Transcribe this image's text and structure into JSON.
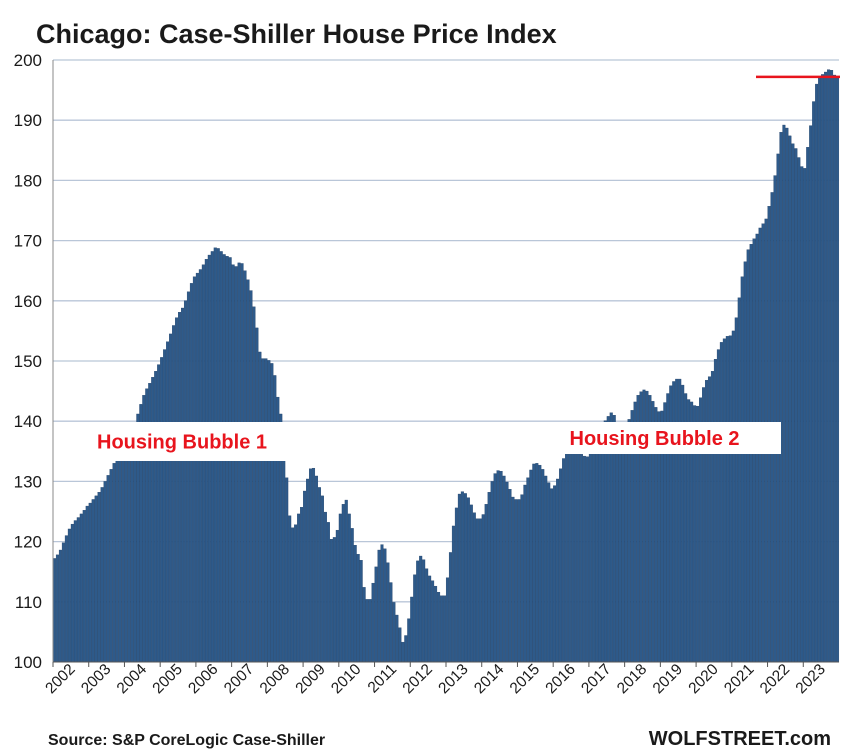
{
  "chart_data": {
    "type": "bar",
    "title": "Chicago: Case-Shiller House Price Index",
    "xlabel": "",
    "ylabel": "",
    "ylim": [
      100,
      200
    ],
    "yticks": [
      100,
      110,
      120,
      130,
      140,
      150,
      160,
      170,
      180,
      190,
      200
    ],
    "year_labels": [
      "2002",
      "2003",
      "2004",
      "2005",
      "2006",
      "2007",
      "2008",
      "2009",
      "2010",
      "2011",
      "2012",
      "2013",
      "2014",
      "2015",
      "2016",
      "2017",
      "2018",
      "2019",
      "2020",
      "2021",
      "2022",
      "2023"
    ],
    "start": "2002-01",
    "frequency": "monthly",
    "grid": true,
    "legend": "none",
    "values": [
      117.2,
      117.8,
      118.6,
      119.8,
      121.0,
      122.1,
      122.9,
      123.5,
      124.0,
      124.6,
      125.2,
      125.9,
      126.4,
      127.0,
      127.6,
      128.2,
      129.0,
      130.0,
      131.0,
      132.0,
      133.0,
      133.8,
      134.6,
      135.4,
      136.3,
      137.4,
      138.6,
      139.8,
      141.2,
      142.8,
      144.3,
      145.4,
      146.3,
      147.3,
      148.3,
      149.4,
      150.6,
      151.9,
      153.2,
      154.5,
      155.9,
      157.2,
      158.1,
      158.8,
      160.0,
      161.5,
      162.9,
      164.0,
      164.6,
      165.2,
      166.0,
      166.9,
      167.6,
      168.2,
      168.8,
      168.7,
      168.2,
      167.7,
      167.4,
      167.2,
      166.0,
      165.7,
      166.3,
      166.2,
      165.0,
      163.5,
      161.7,
      159.0,
      155.5,
      151.5,
      150.4,
      150.4,
      150.1,
      149.6,
      147.6,
      144.0,
      141.2,
      137.2,
      130.6,
      124.3,
      122.3,
      122.8,
      124.6,
      125.7,
      128.4,
      130.4,
      132.1,
      132.2,
      130.9,
      129.0,
      127.6,
      124.9,
      123.2,
      120.4,
      120.7,
      121.9,
      124.6,
      126.2,
      126.9,
      124.6,
      122.2,
      119.4,
      117.9,
      116.9,
      112.4,
      110.4,
      110.4,
      113.1,
      115.8,
      118.6,
      119.5,
      118.8,
      116.5,
      113.2,
      109.9,
      107.8,
      105.7,
      103.3,
      104.4,
      107.2,
      110.8,
      114.5,
      116.8,
      117.6,
      117.0,
      115.5,
      114.3,
      113.5,
      112.6,
      111.6,
      111.0,
      111.0,
      114.0,
      118.2,
      122.6,
      125.6,
      127.9,
      128.3,
      128.0,
      127.3,
      126.1,
      124.8,
      123.8,
      123.8,
      124.5,
      126.2,
      128.2,
      130.0,
      131.3,
      131.8,
      131.7,
      130.9,
      129.9,
      128.7,
      127.4,
      127.0,
      127.0,
      127.8,
      129.4,
      130.6,
      131.9,
      132.9,
      133.0,
      132.7,
      132.0,
      130.9,
      129.8,
      128.8,
      129.3,
      130.4,
      132.1,
      133.8,
      135.3,
      136.0,
      135.8,
      135.4,
      134.9,
      134.5,
      134.2,
      134.1,
      135.1,
      135.7,
      136.6,
      137.6,
      139.0,
      140.1,
      140.8,
      141.4,
      141.0,
      139.4,
      138.1,
      138.0,
      139.1,
      140.3,
      141.8,
      143.2,
      144.3,
      144.9,
      145.2,
      145.0,
      144.3,
      143.3,
      142.3,
      141.6,
      141.7,
      143.1,
      144.6,
      145.9,
      146.6,
      147.0,
      147.0,
      146.0,
      144.6,
      143.6,
      143.2,
      142.6,
      142.5,
      143.9,
      145.6,
      146.8,
      147.4,
      148.3,
      150.3,
      151.9,
      153.1,
      153.7,
      154.1,
      154.2,
      155.0,
      157.2,
      160.5,
      164.0,
      166.5,
      168.5,
      169.4,
      170.3,
      171.1,
      172.1,
      172.8,
      173.6,
      175.7,
      178.0,
      180.8,
      184.4,
      188.0,
      189.2,
      188.7,
      187.4,
      186.1,
      185.3,
      183.8,
      182.3,
      182.0,
      185.5,
      189.1,
      193.1,
      196.0,
      197.0,
      197.6,
      198.0,
      198.4,
      198.3,
      197.5,
      197.2
    ],
    "annotations": [
      {
        "text": "Housing Bubble 1",
        "color": "#e8141d"
      },
      {
        "text": "Housing Bubble 2",
        "color": "#e8141d"
      }
    ],
    "reference_line": {
      "value": 197.2,
      "color": "#e8141d"
    },
    "bar_color": "#2e5a8a",
    "bar_edge_color": "#1f3f66",
    "grid_color": "#b9c6d8"
  },
  "footer": {
    "source": "Source: S&P CoreLogic Case-Shiller",
    "brand": "WOLFSTREET.com"
  }
}
